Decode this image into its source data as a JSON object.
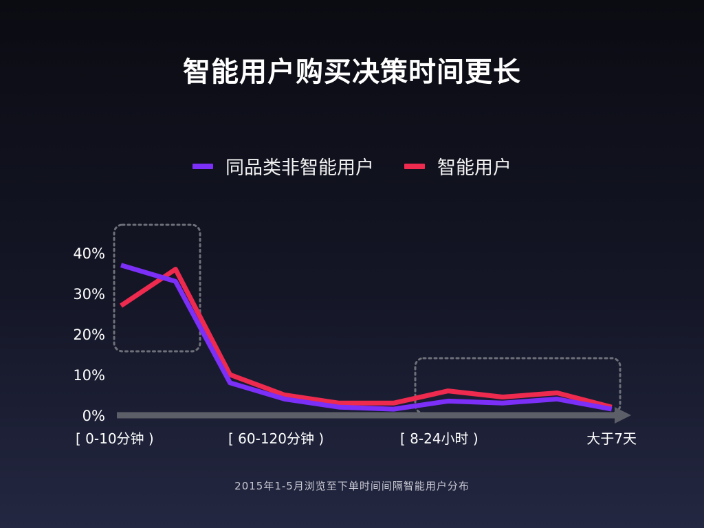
{
  "title": "智能用户购买决策时间更长",
  "caption": "2015年1-5月浏览至下单时间间隔智能用户分布",
  "colors": {
    "non_smart": "#7b2ff7",
    "smart": "#ee2a4f",
    "axis": "#5d5f68",
    "highlight_box": "#6e7079"
  },
  "chart_data": {
    "type": "line",
    "yticks": [
      "0%",
      "10%",
      "20%",
      "30%",
      "40%"
    ],
    "ylim": [
      0,
      40
    ],
    "xtick_labels": [
      "[ 0-10分钟 )",
      "[ 60-120分钟 )",
      "[ 8-24小时 )",
      "大于7天"
    ],
    "legend": [
      "同品类非智能用户",
      "智能用户"
    ],
    "series": [
      {
        "name": "同品类非智能用户",
        "color": "#7b2ff7",
        "values": [
          37,
          33,
          8,
          4,
          2,
          1.5,
          3.5,
          3,
          4,
          1.5
        ]
      },
      {
        "name": "智能用户",
        "color": "#ee2a4f",
        "values": [
          27,
          36,
          10,
          5,
          3,
          3,
          6,
          4.5,
          5.5,
          2
        ]
      }
    ]
  }
}
